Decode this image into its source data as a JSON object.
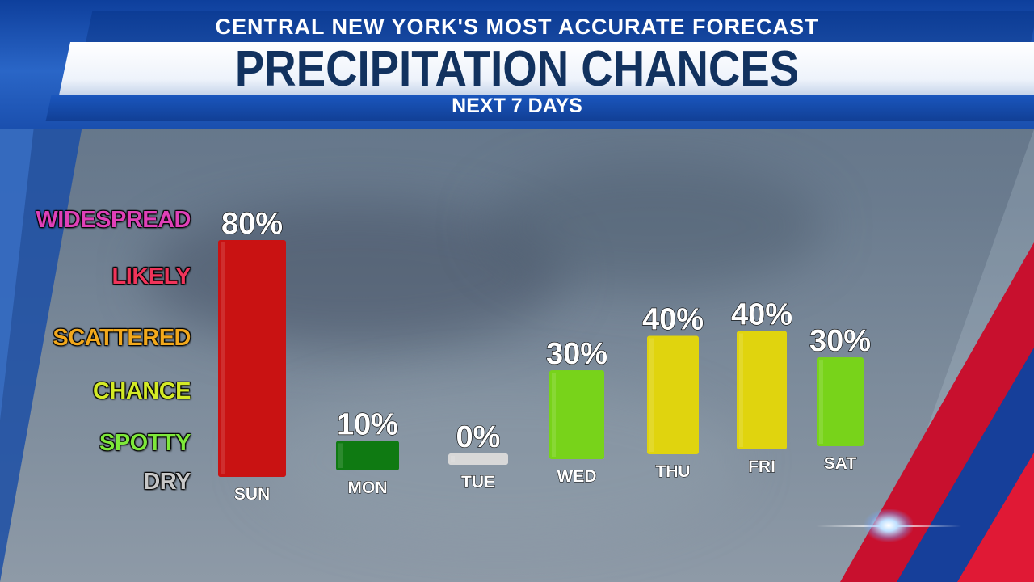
{
  "header": {
    "subtitle": "CENTRAL NEW YORK'S MOST ACCURATE FORECAST",
    "title": "PRECIPITATION CHANCES",
    "period": "NEXT 7 DAYS"
  },
  "scale_levels": [
    {
      "label": "WIDESPREAD",
      "color": "#e040b8"
    },
    {
      "label": "LIKELY",
      "color": "#f0345a"
    },
    {
      "label": "SCATTERED",
      "color": "#f2a81c"
    },
    {
      "label": "CHANCE",
      "color": "#d4ea26"
    },
    {
      "label": "SPOTTY",
      "color": "#7ee83a"
    },
    {
      "label": "DRY",
      "color": "#c8c8c8"
    }
  ],
  "chart_data": {
    "type": "bar",
    "categories": [
      "SUN",
      "MON",
      "TUE",
      "WED",
      "THU",
      "FRI",
      "SAT"
    ],
    "values": [
      80,
      10,
      0,
      30,
      40,
      40,
      30
    ],
    "value_labels": [
      "80%",
      "10%",
      "0%",
      "30%",
      "40%",
      "40%",
      "30%"
    ],
    "bar_colors": [
      "#c91212",
      "#0f7a12",
      "#d8d8d8",
      "#78d31a",
      "#e0d40e",
      "#e0d40e",
      "#78d31a"
    ],
    "ylim": [
      0,
      100
    ]
  }
}
